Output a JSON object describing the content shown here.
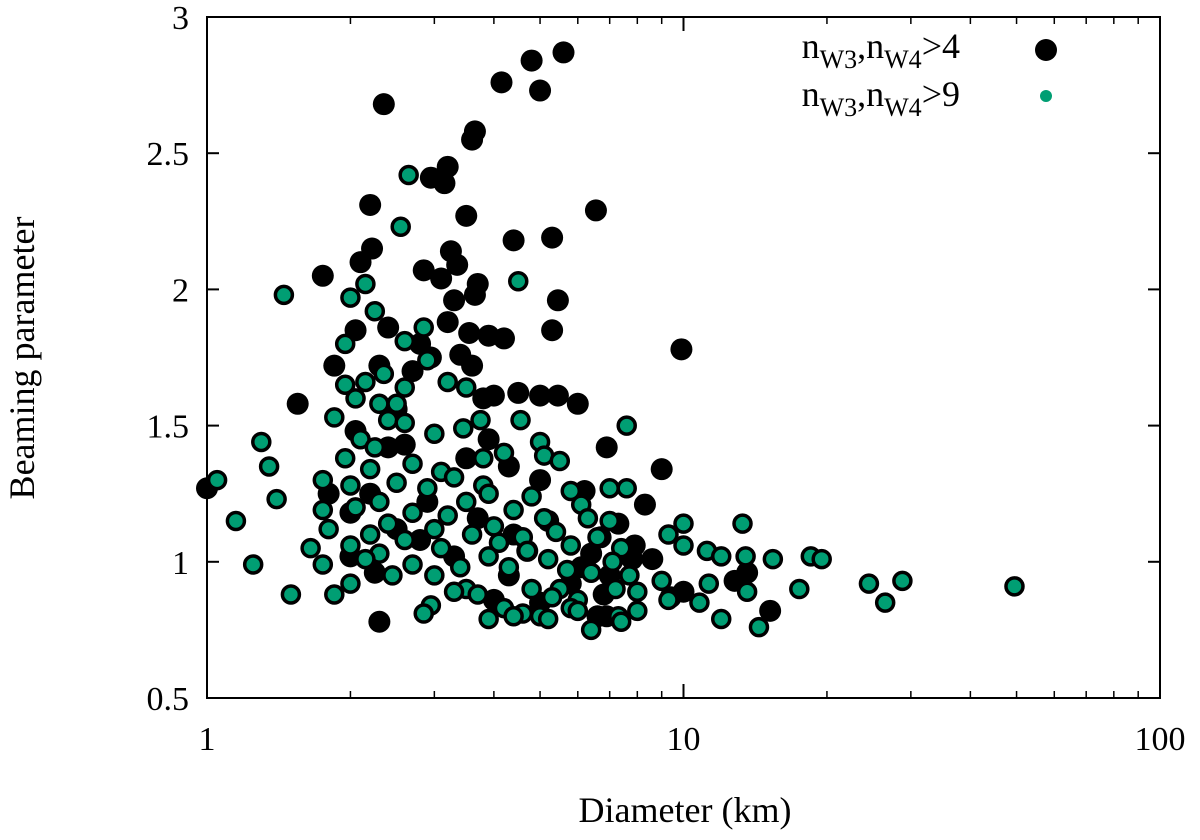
{
  "chart_data": {
    "type": "scatter",
    "xlabel": "Diameter (km)",
    "ylabel": "Beaming parameter",
    "xscale": "log",
    "xlim": [
      1,
      100
    ],
    "ylim": [
      0.5,
      3
    ],
    "xticks": [
      {
        "value": 1,
        "label": "1"
      },
      {
        "value": 10,
        "label": "10"
      },
      {
        "value": 100,
        "label": "100"
      }
    ],
    "yticks": [
      {
        "value": 0.5,
        "label": "0.5"
      },
      {
        "value": 1,
        "label": "1"
      },
      {
        "value": 1.5,
        "label": "1.5"
      },
      {
        "value": 2,
        "label": "2"
      },
      {
        "value": 2.5,
        "label": "2.5"
      },
      {
        "value": 3,
        "label": "3"
      }
    ],
    "grid": false,
    "legend_position": "top-right",
    "series": [
      {
        "name": "nW3,nW4>4",
        "color": "#000000",
        "points": [
          [
            2.35,
            2.68
          ],
          [
            4.8,
            2.84
          ],
          [
            5.6,
            2.87
          ],
          [
            4.15,
            2.76
          ],
          [
            5.0,
            2.73
          ],
          [
            3.65,
            2.58
          ],
          [
            3.6,
            2.55
          ],
          [
            3.2,
            2.45
          ],
          [
            2.95,
            2.41
          ],
          [
            3.15,
            2.39
          ],
          [
            6.55,
            2.29
          ],
          [
            2.2,
            2.31
          ],
          [
            3.5,
            2.27
          ],
          [
            4.4,
            2.18
          ],
          [
            5.3,
            2.19
          ],
          [
            2.22,
            2.15
          ],
          [
            3.25,
            2.14
          ],
          [
            2.1,
            2.1
          ],
          [
            3.35,
            2.09
          ],
          [
            2.85,
            2.07
          ],
          [
            1.75,
            2.05
          ],
          [
            3.1,
            2.04
          ],
          [
            3.7,
            2.02
          ],
          [
            3.65,
            1.98
          ],
          [
            3.3,
            1.96
          ],
          [
            5.45,
            1.96
          ],
          [
            3.2,
            1.88
          ],
          [
            2.4,
            1.86
          ],
          [
            2.05,
            1.85
          ],
          [
            3.55,
            1.84
          ],
          [
            3.9,
            1.83
          ],
          [
            4.2,
            1.82
          ],
          [
            2.8,
            1.8
          ],
          [
            5.3,
            1.85
          ],
          [
            9.9,
            1.78
          ],
          [
            3.4,
            1.76
          ],
          [
            2.95,
            1.75
          ],
          [
            3.6,
            1.72
          ],
          [
            2.3,
            1.72
          ],
          [
            1.85,
            1.72
          ],
          [
            2.7,
            1.7
          ],
          [
            1.55,
            1.58
          ],
          [
            2.5,
            1.56
          ],
          [
            3.8,
            1.6
          ],
          [
            4.0,
            1.61
          ],
          [
            4.5,
            1.62
          ],
          [
            5.0,
            1.61
          ],
          [
            5.45,
            1.61
          ],
          [
            6.0,
            1.58
          ],
          [
            2.05,
            1.48
          ],
          [
            3.9,
            1.45
          ],
          [
            2.6,
            1.43
          ],
          [
            2.4,
            1.42
          ],
          [
            6.9,
            1.42
          ],
          [
            3.5,
            1.38
          ],
          [
            4.3,
            1.35
          ],
          [
            9.0,
            1.34
          ],
          [
            5.0,
            1.3
          ],
          [
            2.2,
            1.25
          ],
          [
            6.2,
            1.26
          ],
          [
            8.3,
            1.21
          ],
          [
            2.9,
            1.22
          ],
          [
            2.0,
            1.18
          ],
          [
            3.7,
            1.16
          ],
          [
            5.2,
            1.15
          ],
          [
            7.3,
            1.14
          ],
          [
            2.5,
            1.12
          ],
          [
            4.4,
            1.1
          ],
          [
            6.7,
            1.09
          ],
          [
            2.8,
            1.08
          ],
          [
            7.9,
            1.06
          ],
          [
            4.7,
            1.04
          ],
          [
            6.4,
            1.03
          ],
          [
            3.3,
            1.02
          ],
          [
            2.0,
            1.02
          ],
          [
            7.8,
            1.01
          ],
          [
            8.6,
            1.01
          ],
          [
            6.1,
            0.98
          ],
          [
            2.25,
            0.96
          ],
          [
            4.3,
            0.95
          ],
          [
            7.0,
            0.95
          ],
          [
            13.6,
            0.96
          ],
          [
            12.8,
            0.93
          ],
          [
            10.0,
            0.89
          ],
          [
            6.8,
            0.88
          ],
          [
            4.0,
            0.86
          ],
          [
            5.0,
            0.85
          ],
          [
            15.2,
            0.82
          ],
          [
            6.6,
            0.8
          ],
          [
            6.9,
            0.8
          ],
          [
            2.3,
            0.78
          ],
          [
            1.0,
            1.27
          ],
          [
            1.8,
            1.25
          ],
          [
            9.4,
            0.87
          ],
          [
            5.8,
            0.92
          ]
        ]
      },
      {
        "name": "nW3,nW4>9",
        "color": "#009e73",
        "points": [
          [
            2.65,
            2.42
          ],
          [
            2.55,
            2.23
          ],
          [
            4.5,
            2.03
          ],
          [
            2.15,
            2.02
          ],
          [
            1.45,
            1.98
          ],
          [
            2.0,
            1.97
          ],
          [
            2.25,
            1.92
          ],
          [
            2.85,
            1.86
          ],
          [
            2.6,
            1.81
          ],
          [
            1.95,
            1.8
          ],
          [
            2.9,
            1.74
          ],
          [
            2.35,
            1.69
          ],
          [
            2.15,
            1.66
          ],
          [
            3.2,
            1.66
          ],
          [
            3.5,
            1.64
          ],
          [
            2.6,
            1.64
          ],
          [
            1.95,
            1.65
          ],
          [
            2.05,
            1.6
          ],
          [
            2.3,
            1.58
          ],
          [
            2.5,
            1.58
          ],
          [
            1.85,
            1.53
          ],
          [
            2.4,
            1.52
          ],
          [
            2.6,
            1.51
          ],
          [
            3.0,
            1.47
          ],
          [
            3.45,
            1.49
          ],
          [
            3.75,
            1.52
          ],
          [
            4.55,
            1.52
          ],
          [
            7.6,
            1.5
          ],
          [
            2.1,
            1.45
          ],
          [
            2.25,
            1.42
          ],
          [
            1.3,
            1.44
          ],
          [
            4.2,
            1.4
          ],
          [
            5.0,
            1.44
          ],
          [
            5.1,
            1.39
          ],
          [
            3.8,
            1.38
          ],
          [
            1.95,
            1.38
          ],
          [
            2.7,
            1.36
          ],
          [
            5.5,
            1.37
          ],
          [
            2.2,
            1.34
          ],
          [
            3.1,
            1.33
          ],
          [
            1.35,
            1.35
          ],
          [
            3.3,
            1.31
          ],
          [
            1.75,
            1.3
          ],
          [
            2.0,
            1.28
          ],
          [
            2.5,
            1.29
          ],
          [
            2.9,
            1.27
          ],
          [
            3.8,
            1.28
          ],
          [
            1.05,
            1.3
          ],
          [
            7.0,
            1.27
          ],
          [
            7.6,
            1.27
          ],
          [
            5.8,
            1.26
          ],
          [
            3.9,
            1.25
          ],
          [
            4.8,
            1.24
          ],
          [
            1.4,
            1.23
          ],
          [
            2.3,
            1.22
          ],
          [
            3.5,
            1.22
          ],
          [
            2.05,
            1.2
          ],
          [
            6.1,
            1.21
          ],
          [
            4.4,
            1.19
          ],
          [
            2.7,
            1.18
          ],
          [
            3.2,
            1.17
          ],
          [
            1.75,
            1.19
          ],
          [
            5.1,
            1.16
          ],
          [
            6.3,
            1.16
          ],
          [
            7.0,
            1.15
          ],
          [
            2.4,
            1.14
          ],
          [
            4.0,
            1.13
          ],
          [
            1.15,
            1.15
          ],
          [
            13.3,
            1.14
          ],
          [
            10.0,
            1.14
          ],
          [
            3.0,
            1.12
          ],
          [
            5.4,
            1.11
          ],
          [
            1.8,
            1.12
          ],
          [
            2.2,
            1.1
          ],
          [
            3.6,
            1.1
          ],
          [
            4.6,
            1.09
          ],
          [
            6.6,
            1.09
          ],
          [
            9.3,
            1.1
          ],
          [
            2.6,
            1.08
          ],
          [
            4.1,
            1.07
          ],
          [
            2.0,
            1.06
          ],
          [
            5.8,
            1.06
          ],
          [
            1.65,
            1.05
          ],
          [
            3.1,
            1.05
          ],
          [
            10.0,
            1.06
          ],
          [
            7.4,
            1.05
          ],
          [
            11.2,
            1.04
          ],
          [
            4.7,
            1.04
          ],
          [
            2.3,
            1.03
          ],
          [
            3.9,
            1.02
          ],
          [
            12.0,
            1.02
          ],
          [
            13.5,
            1.02
          ],
          [
            15.4,
            1.01
          ],
          [
            18.5,
            1.02
          ],
          [
            19.5,
            1.01
          ],
          [
            2.15,
            1.01
          ],
          [
            5.2,
            1.01
          ],
          [
            7.1,
            1.0
          ],
          [
            2.7,
            0.99
          ],
          [
            1.75,
            0.99
          ],
          [
            1.25,
            0.99
          ],
          [
            3.4,
            0.98
          ],
          [
            4.3,
            0.98
          ],
          [
            5.7,
            0.97
          ],
          [
            6.4,
            0.96
          ],
          [
            7.7,
            0.95
          ],
          [
            2.45,
            0.95
          ],
          [
            3.0,
            0.95
          ],
          [
            2.0,
            0.92
          ],
          [
            9.0,
            0.93
          ],
          [
            11.3,
            0.92
          ],
          [
            24.5,
            0.92
          ],
          [
            28.8,
            0.93
          ],
          [
            49.5,
            0.91
          ],
          [
            3.5,
            0.9
          ],
          [
            4.8,
            0.9
          ],
          [
            5.5,
            0.9
          ],
          [
            7.2,
            0.9
          ],
          [
            3.3,
            0.89
          ],
          [
            8.0,
            0.89
          ],
          [
            13.6,
            0.89
          ],
          [
            17.5,
            0.9
          ],
          [
            1.85,
            0.88
          ],
          [
            1.5,
            0.88
          ],
          [
            3.7,
            0.88
          ],
          [
            5.3,
            0.87
          ],
          [
            6.0,
            0.86
          ],
          [
            9.3,
            0.86
          ],
          [
            10.8,
            0.85
          ],
          [
            26.5,
            0.85
          ],
          [
            2.95,
            0.84
          ],
          [
            4.2,
            0.83
          ],
          [
            5.8,
            0.83
          ],
          [
            8.0,
            0.82
          ],
          [
            2.85,
            0.81
          ],
          [
            4.6,
            0.81
          ],
          [
            5.0,
            0.8
          ],
          [
            7.3,
            0.8
          ],
          [
            3.9,
            0.79
          ],
          [
            5.2,
            0.79
          ],
          [
            7.4,
            0.78
          ],
          [
            12.0,
            0.79
          ],
          [
            6.4,
            0.75
          ],
          [
            14.4,
            0.76
          ],
          [
            6.0,
            0.82
          ],
          [
            4.4,
            0.8
          ]
        ]
      }
    ]
  }
}
